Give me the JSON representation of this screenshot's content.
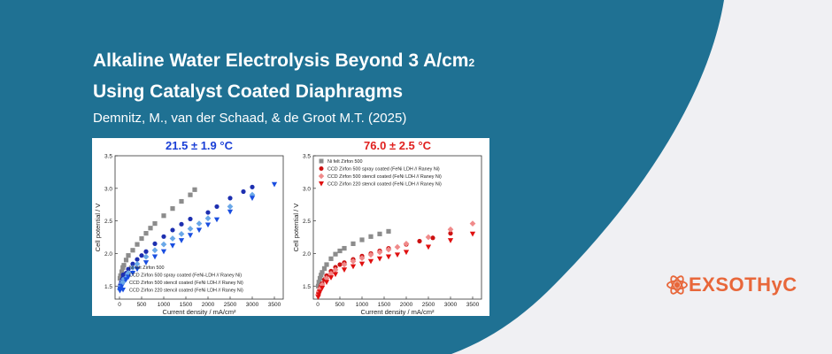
{
  "colors": {
    "background": "#f0f0f3",
    "panel": "#1f7193",
    "title_text": "#ffffff",
    "logo": "#e8673a",
    "cold_title": "#1a3fd6",
    "hot_title": "#e0201e"
  },
  "header": {
    "title_line1": "Alkaline Water Electrolysis Beyond 3 A/cm",
    "title_sub": "2",
    "title_line2": "Using Catalyst Coated Diaphragms",
    "authors": "Demnitz, M., van der Schaad, & de Groot M.T. (2025)"
  },
  "logo": {
    "icon": "atom-icon",
    "text": "EXSOTHyC"
  },
  "chart_data": [
    {
      "type": "scatter",
      "title": "21.5 ± 1.9 °C",
      "xlabel": "Current density / mA/cm²",
      "ylabel": "Cell potential / V",
      "xlim": [
        -100,
        3700
      ],
      "ylim": [
        1.3,
        3.5
      ],
      "xticks": [
        0,
        500,
        1000,
        1500,
        2000,
        2500,
        3000,
        3500
      ],
      "yticks": [
        1.5,
        2.0,
        2.5,
        3.0,
        3.5
      ],
      "legend_position": "bottom-left",
      "series": [
        {
          "name": "Ni felt Zirfon 500",
          "color": "#8c8c8c",
          "marker": "square",
          "x": [
            10,
            25,
            50,
            75,
            100,
            150,
            200,
            300,
            400,
            500,
            600,
            700,
            800,
            1000,
            1200,
            1400,
            1600,
            1700
          ],
          "y": [
            1.62,
            1.66,
            1.72,
            1.78,
            1.82,
            1.9,
            1.97,
            2.05,
            2.14,
            2.23,
            2.31,
            2.39,
            2.46,
            2.58,
            2.69,
            2.8,
            2.9,
            2.98
          ]
        },
        {
          "name": "CCD Zirfon 500 spray coated (FeNi-LDH // Raney Ni)",
          "color": "#1d2fb0",
          "marker": "circle",
          "x": [
            10,
            20,
            40,
            60,
            80,
            100,
            150,
            200,
            300,
            400,
            500,
            600,
            800,
            1000,
            1200,
            1400,
            1600,
            2000,
            2200,
            2500,
            2800,
            3000
          ],
          "y": [
            1.48,
            1.52,
            1.56,
            1.6,
            1.63,
            1.65,
            1.7,
            1.76,
            1.84,
            1.91,
            1.97,
            2.03,
            2.15,
            2.26,
            2.36,
            2.45,
            2.53,
            2.63,
            2.72,
            2.85,
            2.95,
            3.02
          ]
        },
        {
          "name": "CCD Zirfon 500 stencil coated (FeNi LDH // Raney Ni)",
          "color": "#6aa8e8",
          "marker": "diamond",
          "x": [
            10,
            25,
            50,
            75,
            100,
            150,
            200,
            300,
            400,
            600,
            800,
            1000,
            1200,
            1400,
            1600,
            1800,
            2000,
            2500,
            3000
          ],
          "y": [
            1.45,
            1.49,
            1.54,
            1.58,
            1.61,
            1.66,
            1.7,
            1.78,
            1.84,
            1.95,
            2.05,
            2.14,
            2.23,
            2.3,
            2.38,
            2.46,
            2.54,
            2.72,
            2.9
          ]
        },
        {
          "name": "CCD Zirfon 220 stencil coated (FeNi LDH // Raney Ni)",
          "color": "#1a4ee0",
          "marker": "triangle-down",
          "x": [
            10,
            25,
            50,
            75,
            100,
            150,
            200,
            300,
            400,
            600,
            800,
            1000,
            1200,
            1400,
            1600,
            1800,
            2000,
            2200,
            2500,
            3000,
            3500
          ],
          "y": [
            1.43,
            1.46,
            1.5,
            1.53,
            1.56,
            1.6,
            1.64,
            1.7,
            1.76,
            1.86,
            1.95,
            2.03,
            2.12,
            2.2,
            2.28,
            2.36,
            2.44,
            2.52,
            2.64,
            2.85,
            3.06
          ]
        }
      ]
    },
    {
      "type": "scatter",
      "title": "76.0 ± 2.5 °C",
      "xlabel": "Current density / mA/cm²",
      "ylabel": "Cell potential / V",
      "xlim": [
        -100,
        3700
      ],
      "ylim": [
        1.3,
        3.5
      ],
      "xticks": [
        0,
        500,
        1000,
        1500,
        2000,
        2500,
        3000,
        3500
      ],
      "yticks": [
        1.5,
        2.0,
        2.5,
        3.0,
        3.5
      ],
      "legend_position": "top-left",
      "series": [
        {
          "name": "Ni felt Zirfon 500",
          "color": "#8c8c8c",
          "marker": "square",
          "x": [
            10,
            25,
            50,
            75,
            100,
            150,
            200,
            300,
            400,
            500,
            600,
            800,
            1000,
            1200,
            1400,
            1600
          ],
          "y": [
            1.5,
            1.56,
            1.62,
            1.67,
            1.71,
            1.77,
            1.83,
            1.92,
            1.99,
            2.04,
            2.08,
            2.15,
            2.21,
            2.26,
            2.3,
            2.34
          ]
        },
        {
          "name": "CCD Zirfon 500 spray coated (FeNi LDH // Raney Ni)",
          "color": "#cc1111",
          "marker": "circle",
          "x": [
            10,
            25,
            50,
            75,
            100,
            150,
            200,
            300,
            400,
            500,
            600,
            800,
            1000,
            1200,
            1400,
            1600,
            2000,
            2300,
            2600,
            3000
          ],
          "y": [
            1.38,
            1.42,
            1.47,
            1.51,
            1.54,
            1.6,
            1.66,
            1.73,
            1.79,
            1.83,
            1.86,
            1.91,
            1.96,
            2.0,
            2.04,
            2.08,
            2.14,
            2.19,
            2.24,
            2.31
          ]
        },
        {
          "name": "CCD Zirfon 500 stencil coated (FeNi LDH // Raney Ni)",
          "color": "#f08a8a",
          "marker": "diamond",
          "x": [
            10,
            25,
            50,
            100,
            200,
            300,
            400,
            600,
            800,
            1000,
            1200,
            1400,
            1600,
            1800,
            2000,
            2500,
            3000,
            3500
          ],
          "y": [
            1.37,
            1.41,
            1.46,
            1.52,
            1.62,
            1.69,
            1.75,
            1.83,
            1.88,
            1.93,
            1.98,
            2.02,
            2.06,
            2.1,
            2.15,
            2.25,
            2.37,
            2.46
          ]
        },
        {
          "name": "CCD Zirfon 220 stencil coated (FeNi LDH // Raney Ni)",
          "color": "#e01010",
          "marker": "triangle-down",
          "x": [
            10,
            25,
            50,
            100,
            200,
            300,
            400,
            600,
            800,
            1000,
            1200,
            1400,
            1600,
            1800,
            2000,
            2500,
            3000,
            3500
          ],
          "y": [
            1.33,
            1.37,
            1.41,
            1.47,
            1.56,
            1.63,
            1.68,
            1.75,
            1.8,
            1.84,
            1.88,
            1.92,
            1.95,
            1.98,
            2.02,
            2.1,
            2.2,
            2.3
          ]
        }
      ]
    }
  ]
}
